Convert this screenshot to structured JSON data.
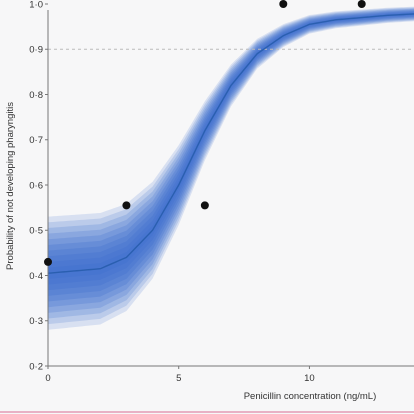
{
  "chart_data": {
    "type": "line",
    "title": "",
    "xlabel": "Penicillin concentration (ng/mL)",
    "ylabel": "Probability of not developing pharyngitis",
    "xlim": [
      0,
      14
    ],
    "ylim": [
      0.2,
      1.0
    ],
    "x_ticks": [
      0,
      5,
      10
    ],
    "x_tick_labels": [
      "0",
      "5",
      "10"
    ],
    "y_ticks": [
      0.2,
      0.3,
      0.4,
      0.5,
      0.6,
      0.7,
      0.8,
      0.9,
      1.0
    ],
    "y_tick_labels": [
      "0·2",
      "0·3",
      "0·4",
      "0·5",
      "0·6",
      "0·7",
      "0·8",
      "0·9",
      "1·0"
    ],
    "reference_line": {
      "y": 0.9,
      "style": "dashed"
    },
    "fitted_curve": {
      "x": [
        0,
        2,
        3,
        4,
        5,
        6,
        7,
        8,
        9,
        10,
        11,
        12,
        13,
        14
      ],
      "y": [
        0.405,
        0.415,
        0.44,
        0.5,
        0.6,
        0.72,
        0.82,
        0.89,
        0.93,
        0.955,
        0.965,
        0.97,
        0.975,
        0.978
      ]
    },
    "observed_points": {
      "x": [
        0,
        3,
        6,
        9,
        12
      ],
      "y": [
        0.43,
        0.555,
        0.555,
        1.0,
        1.0
      ]
    },
    "grid": false,
    "colors": {
      "curve": "#2a5fb0",
      "band": "#3f6fcf",
      "points": "#111111",
      "reference_line": "#bbbbbb",
      "bottom_rule": "#e39ab4"
    }
  }
}
